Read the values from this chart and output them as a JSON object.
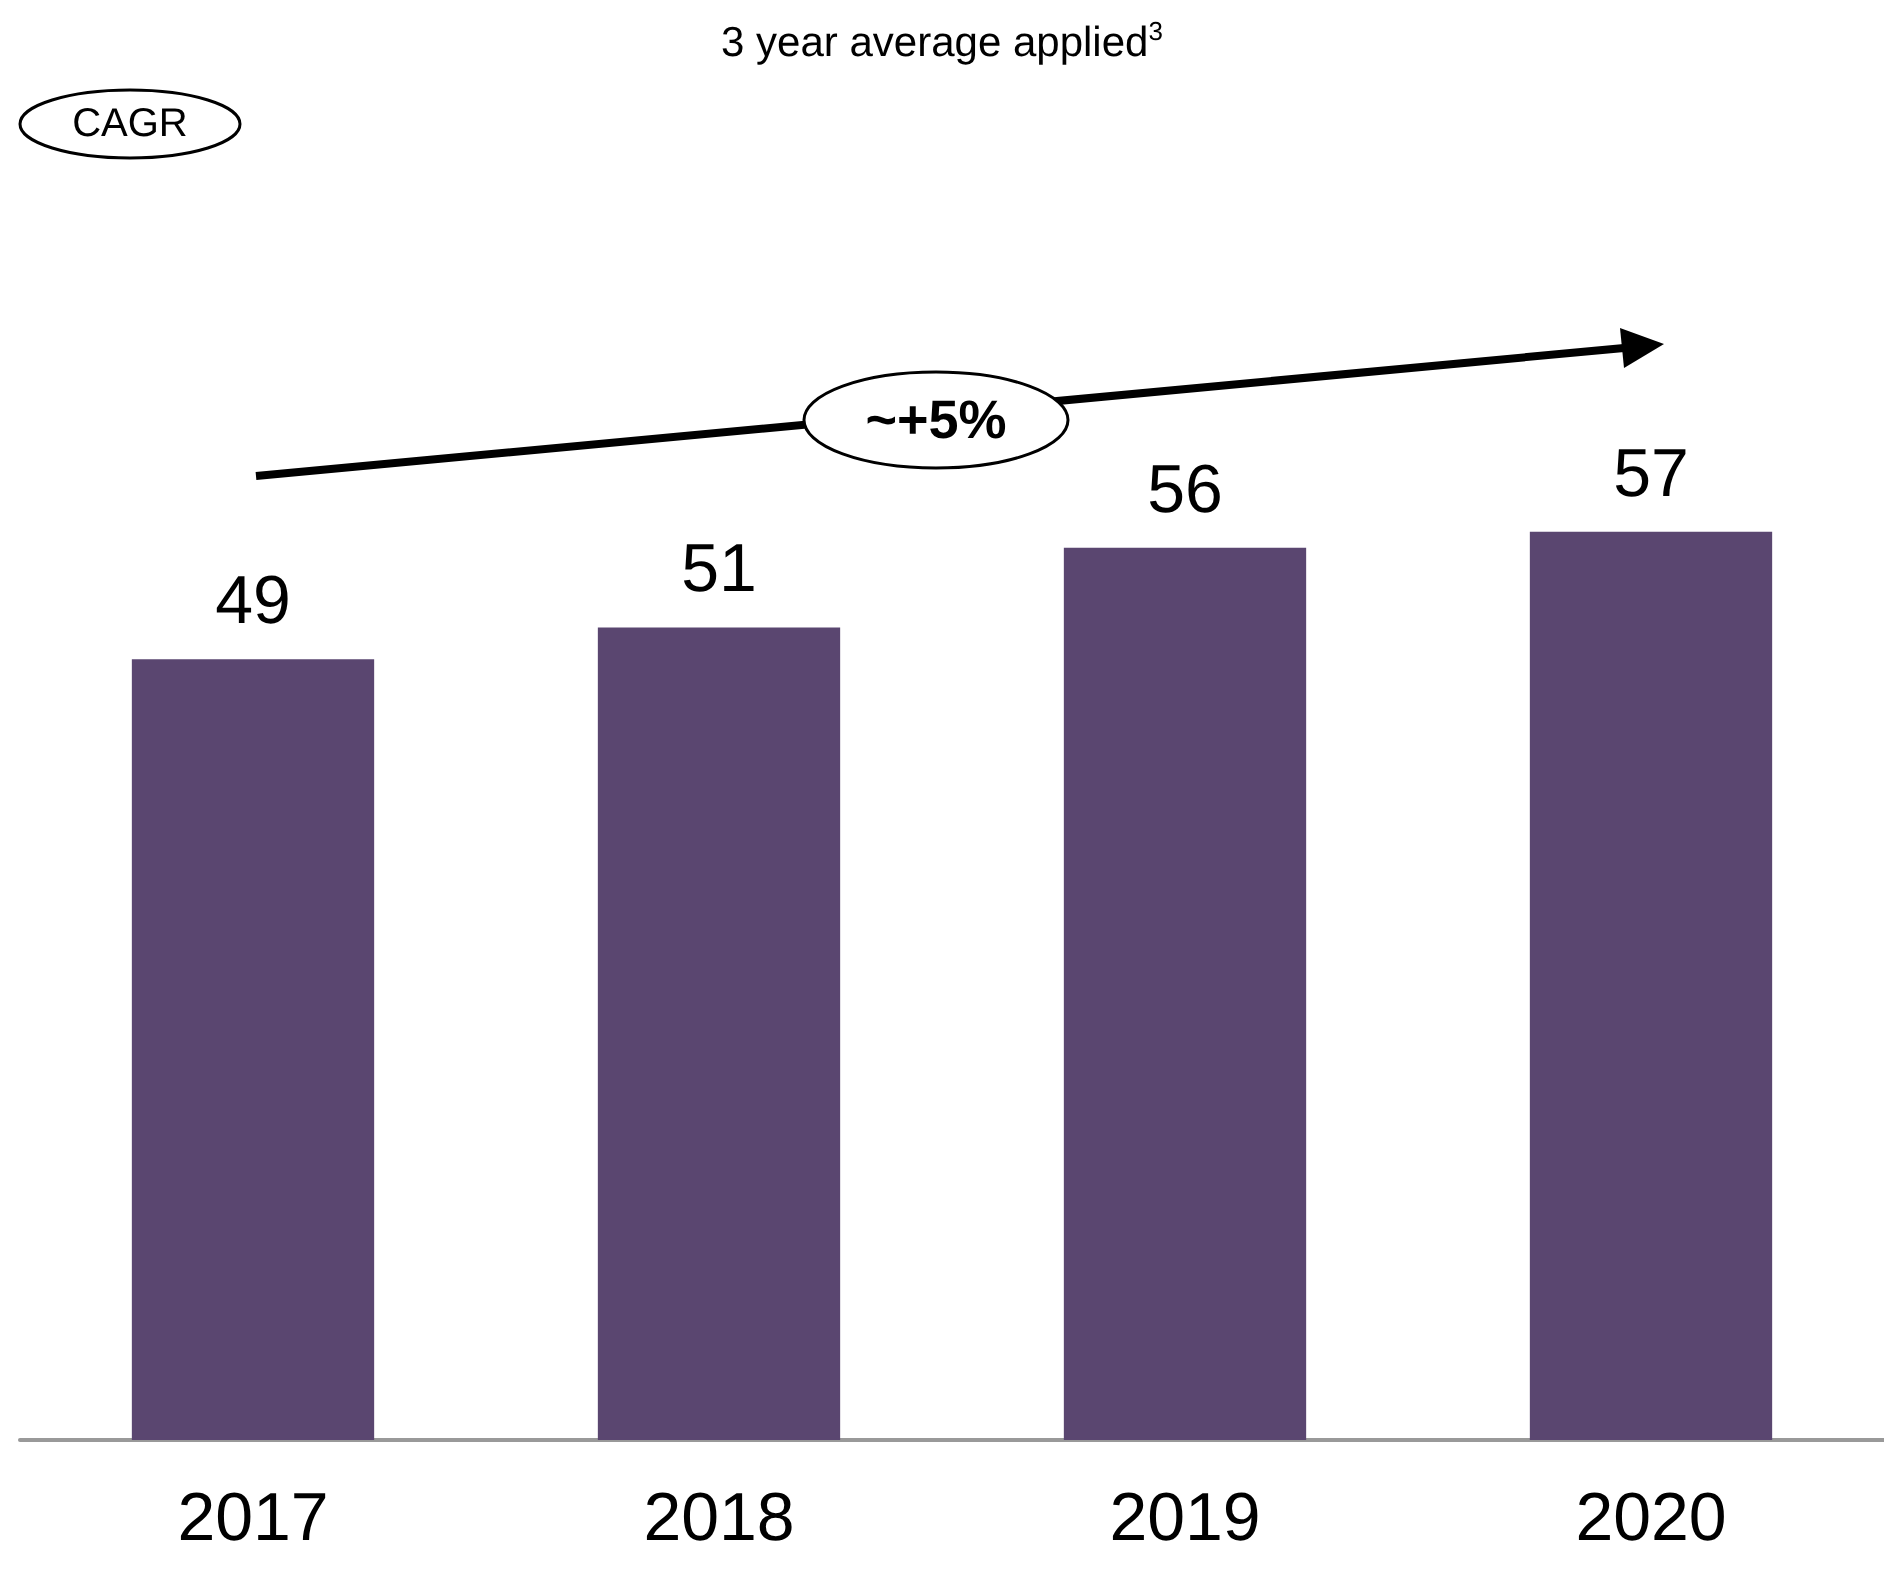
{
  "chart_data": {
    "type": "bar",
    "title": "3 year average applied$^{3}$",
    "categories": [
      "2017",
      "2018",
      "2019",
      "2020"
    ],
    "values": [
      49,
      51,
      56,
      57
    ],
    "color": "#5a4670",
    "data_labels": true,
    "annotations": [
      "CAGR",
      "~+5%"
    ]
  }
}
